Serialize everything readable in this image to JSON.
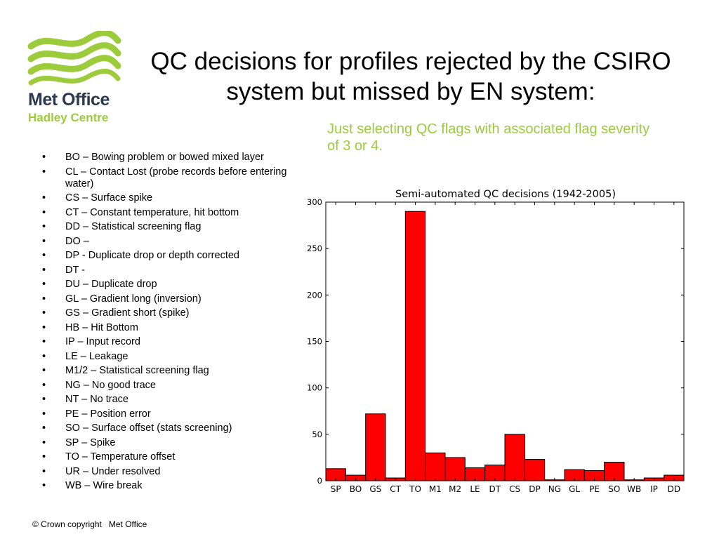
{
  "logo": {
    "line1": "Met Office",
    "line2": "Hadley Centre",
    "wave_color": "#9ccb3b",
    "text_color": "#2d3a4e"
  },
  "title": "QC decisions for profiles rejected by the CSIRO system but missed by EN system:",
  "subtitle": "Just selecting QC flags with associated flag severity of 3 or 4.",
  "legend": [
    "BO – Bowing problem or bowed mixed layer",
    "CL – Contact Lost (probe records before entering water)",
    "CS – Surface spike",
    "CT – Constant temperature, hit bottom",
    "DD – Statistical screening flag",
    "DO –",
    "DP - Duplicate drop or depth corrected",
    "DT -",
    "DU – Duplicate drop",
    "GL – Gradient long (inversion)",
    "GS – Gradient short (spike)",
    "HB – Hit Bottom",
    "IP – Input record",
    "LE – Leakage",
    "M1/2 – Statistical screening flag",
    "NG – No good trace",
    "NT – No trace",
    "PE – Position error",
    "SO – Surface offset (stats screening)",
    "SP – Spike",
    "TO – Temperature offset",
    "UR – Under resolved",
    "WB – Wire break"
  ],
  "chart_data": {
    "type": "bar",
    "title": "Semi-automated QC decisions (1942-2005)",
    "categories": [
      "SP",
      "BO",
      "GS",
      "CT",
      "TO",
      "M1",
      "M2",
      "LE",
      "DT",
      "CS",
      "DP",
      "NG",
      "GL",
      "PE",
      "SO",
      "WB",
      "IP",
      "DD"
    ],
    "values": [
      13,
      6,
      72,
      3,
      290,
      30,
      25,
      14,
      17,
      50,
      23,
      1,
      12,
      11,
      20,
      1,
      3,
      6
    ],
    "yticks": [
      0,
      50,
      100,
      150,
      200,
      250,
      300
    ],
    "ylim": [
      0,
      300
    ],
    "bar_color": "#ff0000",
    "grid": false
  },
  "footer": "© Crown copyright   Met Office"
}
